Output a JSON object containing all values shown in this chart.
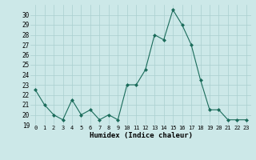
{
  "x": [
    0,
    1,
    2,
    3,
    4,
    5,
    6,
    7,
    8,
    9,
    10,
    11,
    12,
    13,
    14,
    15,
    16,
    17,
    18,
    19,
    20,
    21,
    22,
    23
  ],
  "y": [
    22.5,
    21.0,
    20.0,
    19.5,
    21.5,
    20.0,
    20.5,
    19.5,
    20.0,
    19.5,
    23.0,
    23.0,
    24.5,
    28.0,
    27.5,
    30.5,
    29.0,
    27.0,
    23.5,
    20.5,
    20.5,
    19.5,
    19.5,
    19.5
  ],
  "line_color": "#1a6b5a",
  "marker_color": "#1a6b5a",
  "bg_color": "#cce8e8",
  "grid_color": "#aacfcf",
  "xlabel": "Humidex (Indice chaleur)",
  "ylim": [
    19,
    31
  ],
  "yticks": [
    19,
    20,
    21,
    22,
    23,
    24,
    25,
    26,
    27,
    28,
    29,
    30
  ],
  "xlim": [
    -0.5,
    23.5
  ],
  "xticks": [
    0,
    1,
    2,
    3,
    4,
    5,
    6,
    7,
    8,
    9,
    10,
    11,
    12,
    13,
    14,
    15,
    16,
    17,
    18,
    19,
    20,
    21,
    22,
    23
  ]
}
